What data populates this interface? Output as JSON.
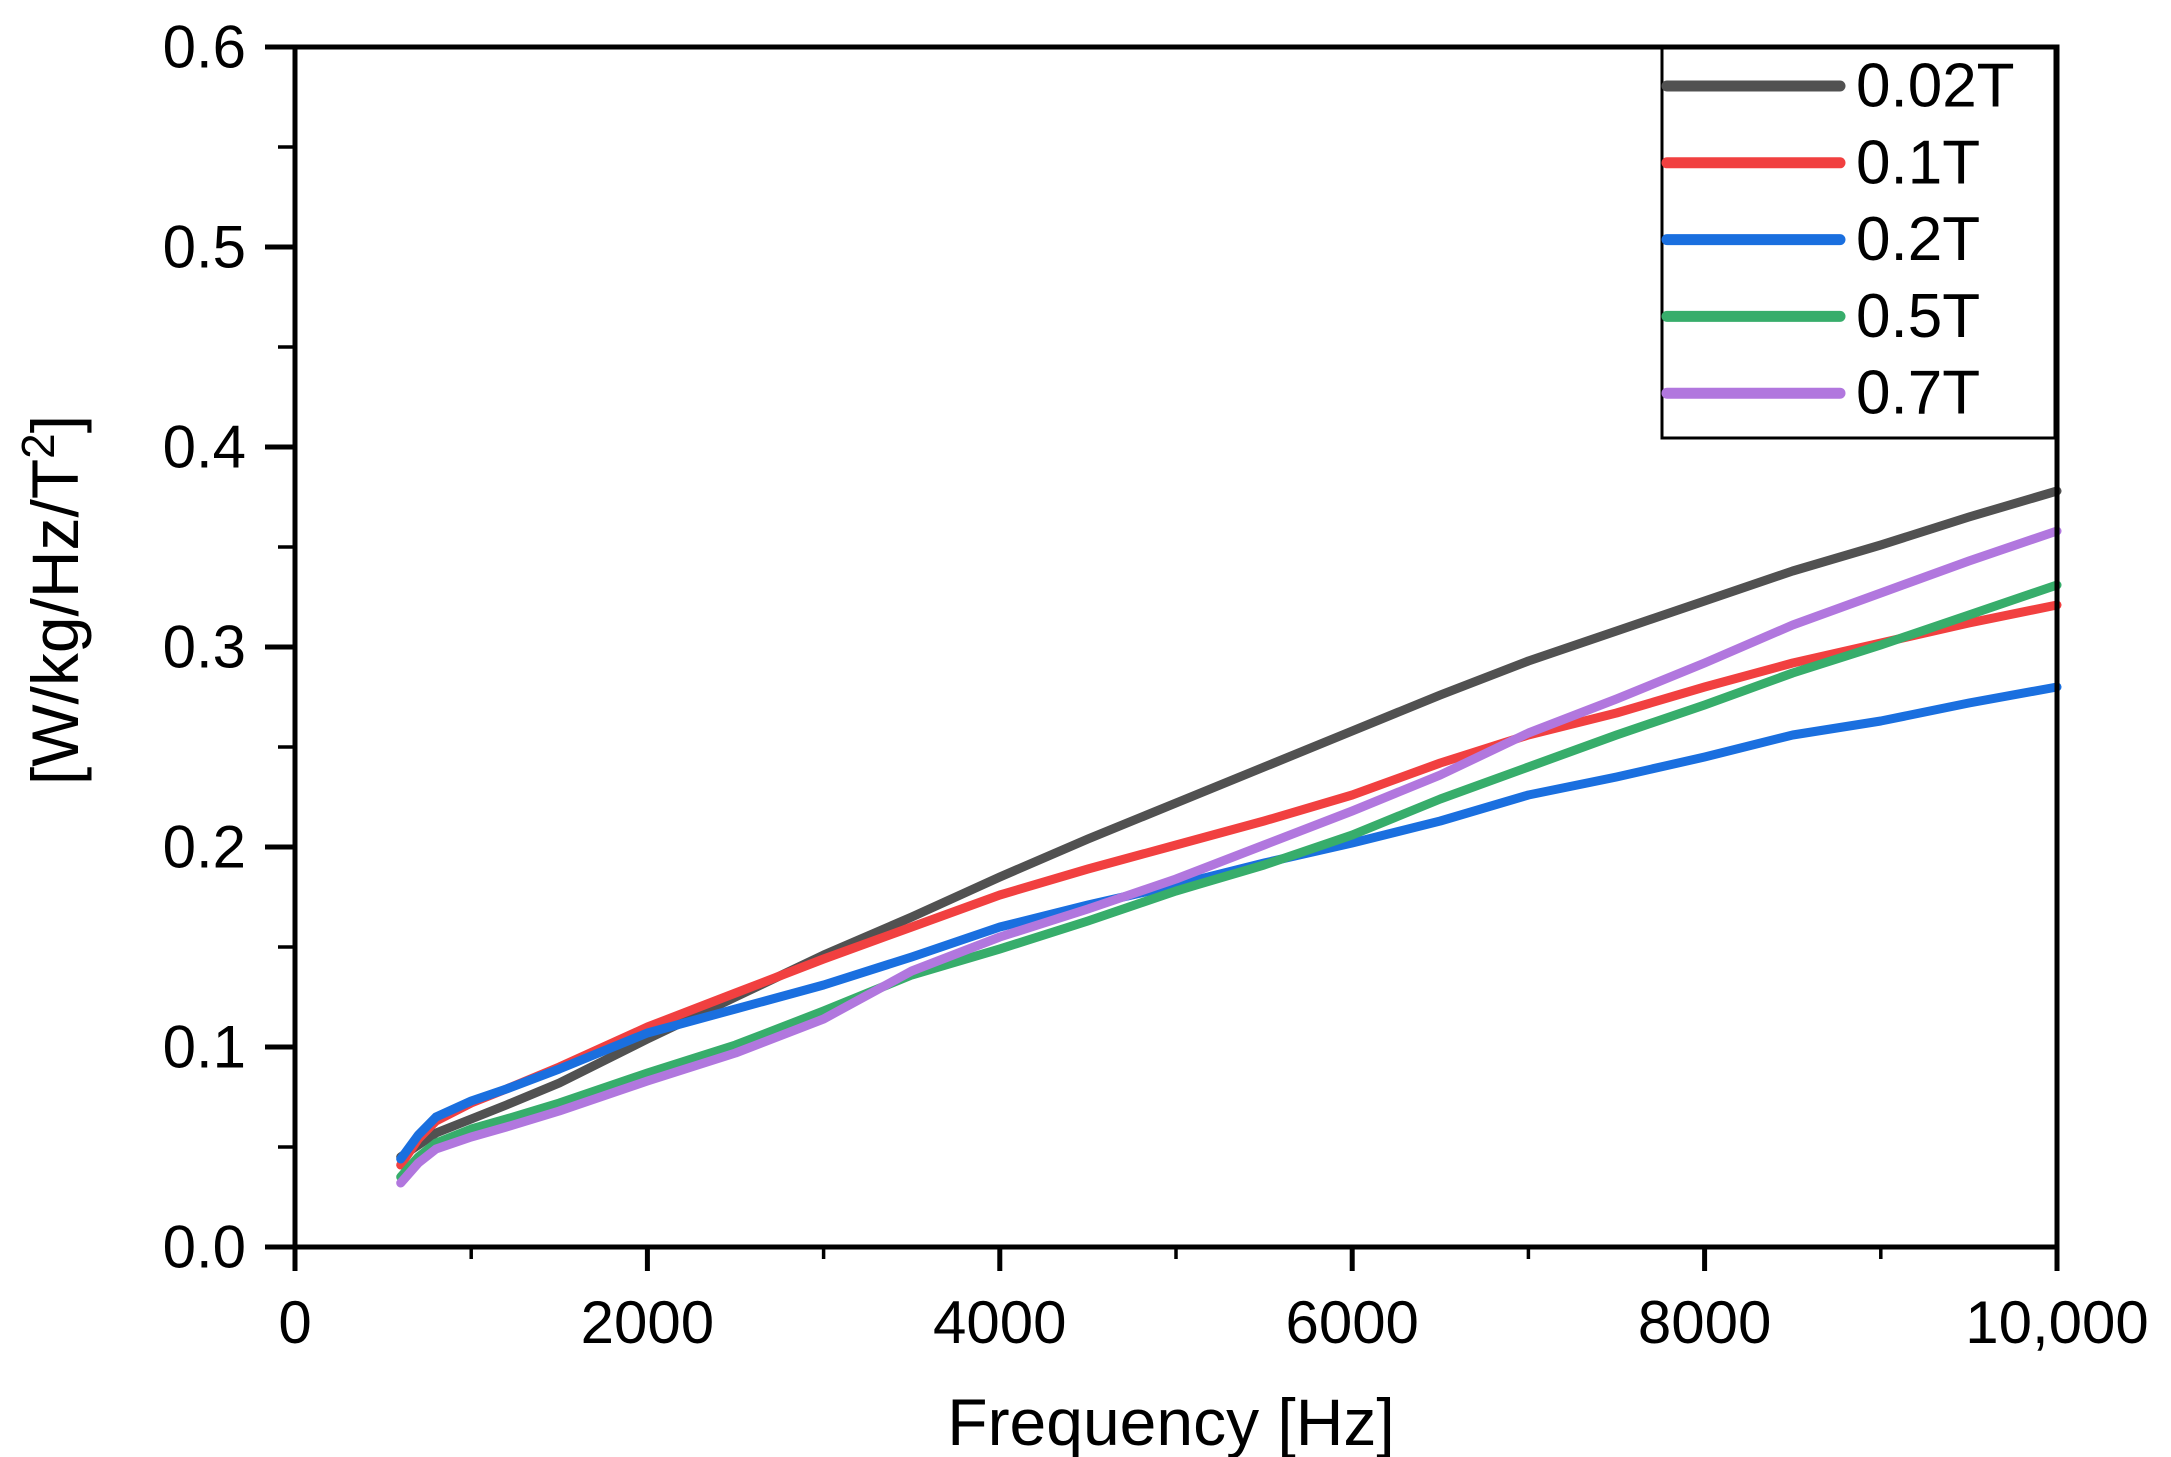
{
  "figure": {
    "background": "#ffffff"
  },
  "chart_data": {
    "type": "line",
    "title": "",
    "xlabel": "Frequency [Hz]",
    "ylabel": {
      "prefix": "[W/kg/Hz/T",
      "sup": "2",
      "suffix": "]"
    },
    "xlim": [
      0,
      10000
    ],
    "ylim": [
      0,
      0.6
    ],
    "grid": false,
    "legend_position": "top-right",
    "frame_color": "#000000",
    "x_major_ticks": [
      0,
      2000,
      4000,
      6000,
      8000,
      10000
    ],
    "x_major_tick_labels": [
      "0",
      "2000",
      "4000",
      "6000",
      "8000",
      "10,000"
    ],
    "x_minor_ticks": [
      1000,
      3000,
      5000,
      7000,
      9000
    ],
    "y_major_ticks": [
      0.0,
      0.1,
      0.2,
      0.3,
      0.4,
      0.5,
      0.6
    ],
    "y_major_tick_labels": [
      "0.0",
      "0.1",
      "0.2",
      "0.3",
      "0.4",
      "0.5",
      "0.6"
    ],
    "y_minor_ticks": [
      0.05,
      0.15,
      0.25,
      0.35,
      0.45,
      0.55
    ],
    "x": [
      600,
      700,
      800,
      1000,
      1200,
      1500,
      2000,
      2500,
      3000,
      3500,
      4000,
      4500,
      5000,
      5500,
      6000,
      6500,
      7000,
      7500,
      8000,
      8500,
      9000,
      9500,
      10000
    ],
    "series": [
      {
        "name": "0.02T",
        "color": "#515151",
        "values": [
          0.045,
          0.051,
          0.057,
          0.064,
          0.071,
          0.082,
          0.104,
          0.125,
          0.146,
          0.165,
          0.185,
          0.204,
          0.222,
          0.24,
          0.258,
          0.276,
          0.293,
          0.308,
          0.323,
          0.338,
          0.351,
          0.365,
          0.378
        ]
      },
      {
        "name": "0.1T",
        "color": "#F14040",
        "values": [
          0.041,
          0.054,
          0.063,
          0.072,
          0.079,
          0.09,
          0.11,
          0.127,
          0.144,
          0.16,
          0.176,
          0.189,
          0.201,
          0.213,
          0.226,
          0.242,
          0.256,
          0.267,
          0.28,
          0.292,
          0.302,
          0.312,
          0.321
        ]
      },
      {
        "name": "0.2T",
        "color": "#1A6FDF",
        "values": [
          0.044,
          0.056,
          0.065,
          0.073,
          0.079,
          0.089,
          0.107,
          0.119,
          0.131,
          0.145,
          0.16,
          0.171,
          0.181,
          0.192,
          0.202,
          0.213,
          0.226,
          0.235,
          0.245,
          0.256,
          0.263,
          0.272,
          0.28
        ]
      },
      {
        "name": "0.5T",
        "color": "#37AD6B",
        "values": [
          0.035,
          0.045,
          0.052,
          0.059,
          0.064,
          0.072,
          0.087,
          0.101,
          0.118,
          0.136,
          0.149,
          0.163,
          0.178,
          0.191,
          0.206,
          0.224,
          0.24,
          0.256,
          0.271,
          0.287,
          0.301,
          0.316,
          0.331
        ]
      },
      {
        "name": "0.7T",
        "color": "#B177DE",
        "values": [
          0.032,
          0.042,
          0.049,
          0.055,
          0.06,
          0.068,
          0.083,
          0.097,
          0.114,
          0.138,
          0.155,
          0.169,
          0.184,
          0.201,
          0.218,
          0.236,
          0.257,
          0.274,
          0.292,
          0.311,
          0.327,
          0.343,
          0.358
        ]
      }
    ]
  }
}
